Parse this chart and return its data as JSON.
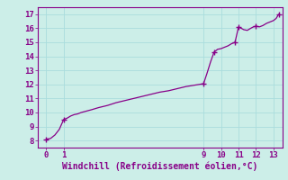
{
  "xlabel": "Windchill (Refroidissement éolien,°C)",
  "ylabel": "",
  "bg_color": "#cceee8",
  "line_color": "#880088",
  "marker_color": "#880088",
  "grid_color": "#aadddd",
  "text_color": "#880088",
  "spine_color": "#880088",
  "xlim": [
    -0.5,
    13.5
  ],
  "ylim": [
    7.5,
    17.5
  ],
  "xticks": [
    0,
    1,
    9,
    10,
    11,
    12,
    13
  ],
  "yticks": [
    8,
    9,
    10,
    11,
    12,
    13,
    14,
    15,
    16,
    17
  ],
  "x": [
    0.0,
    0.25,
    0.5,
    0.75,
    1.0,
    1.2,
    1.4,
    1.6,
    1.8,
    2.0,
    2.3,
    2.6,
    3.0,
    3.5,
    4.0,
    4.5,
    5.0,
    5.5,
    6.0,
    6.5,
    7.0,
    7.5,
    8.0,
    8.5,
    9.0,
    9.2,
    9.4,
    9.6,
    9.8,
    10.0,
    10.2,
    10.4,
    10.6,
    10.8,
    11.0,
    11.15,
    11.3,
    11.5,
    11.7,
    11.85,
    12.0,
    12.2,
    12.4,
    12.6,
    12.8,
    13.0,
    13.15,
    13.3
  ],
  "y": [
    8.1,
    8.15,
    8.4,
    8.8,
    9.5,
    9.6,
    9.75,
    9.85,
    9.9,
    10.0,
    10.1,
    10.2,
    10.35,
    10.5,
    10.7,
    10.85,
    11.0,
    11.15,
    11.3,
    11.45,
    11.55,
    11.7,
    11.85,
    11.95,
    12.05,
    12.8,
    13.6,
    14.3,
    14.5,
    14.55,
    14.65,
    14.75,
    14.9,
    15.0,
    16.1,
    16.0,
    15.9,
    15.85,
    16.0,
    16.1,
    16.15,
    16.1,
    16.2,
    16.35,
    16.45,
    16.55,
    16.7,
    17.0
  ],
  "marker_x": [
    0.0,
    1.0,
    9.0,
    9.6,
    10.8,
    11.0,
    12.0,
    13.3
  ],
  "marker_y": [
    8.1,
    9.5,
    12.05,
    14.3,
    15.0,
    16.1,
    16.15,
    17.0
  ]
}
